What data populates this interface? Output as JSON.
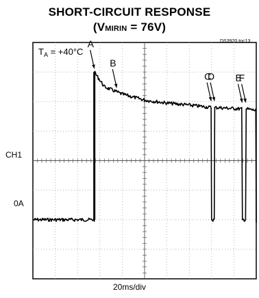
{
  "chart_data": {
    "type": "line",
    "title": "SHORT-CIRCUIT RESPONSE",
    "subtitle_prefix": "(V",
    "subtitle_sub": "MIRIN",
    "subtitle_suffix": " = 76V)",
    "figure_id": "DS3920 toc13",
    "condition_label": "T",
    "condition_sub": "A",
    "condition_value": " = +40°C",
    "channel_label": "CH1",
    "zero_label": "0A",
    "xlabel": "20ms/div",
    "xlim": [
      0,
      10
    ],
    "ylim": [
      -4,
      4
    ],
    "x_divisions": 10,
    "y_divisions": 8,
    "grid": true,
    "trace_color": "#000000",
    "zero_level_div": -2,
    "series": [
      {
        "values": [
          [
            0,
            -2.0
          ],
          [
            2.75,
            -2.0
          ],
          [
            2.75,
            3.0
          ],
          [
            3.2,
            2.5
          ],
          [
            4.0,
            2.25
          ],
          [
            5.0,
            2.05
          ],
          [
            6.0,
            1.95
          ],
          [
            7.0,
            1.88
          ],
          [
            7.98,
            1.8
          ],
          [
            8.0,
            -2.0
          ],
          [
            8.12,
            -2.0
          ],
          [
            8.14,
            1.8
          ],
          [
            9.35,
            1.75
          ],
          [
            9.38,
            -2.0
          ],
          [
            9.52,
            -2.0
          ],
          [
            9.55,
            1.75
          ],
          [
            9.98,
            1.7
          ],
          [
            10.0,
            -2.1
          ]
        ]
      }
    ],
    "annotations": [
      {
        "label": "A",
        "x": 2.75,
        "y": 3.05
      },
      {
        "label": "B",
        "x": 3.75,
        "y": 2.4
      },
      {
        "label": "C",
        "x": 7.98,
        "y": 1.95
      },
      {
        "label": "D",
        "x": 8.13,
        "y": 1.95
      },
      {
        "label": "E",
        "x": 9.37,
        "y": 1.9
      },
      {
        "label": "F",
        "x": 9.53,
        "y": 1.9
      }
    ]
  }
}
